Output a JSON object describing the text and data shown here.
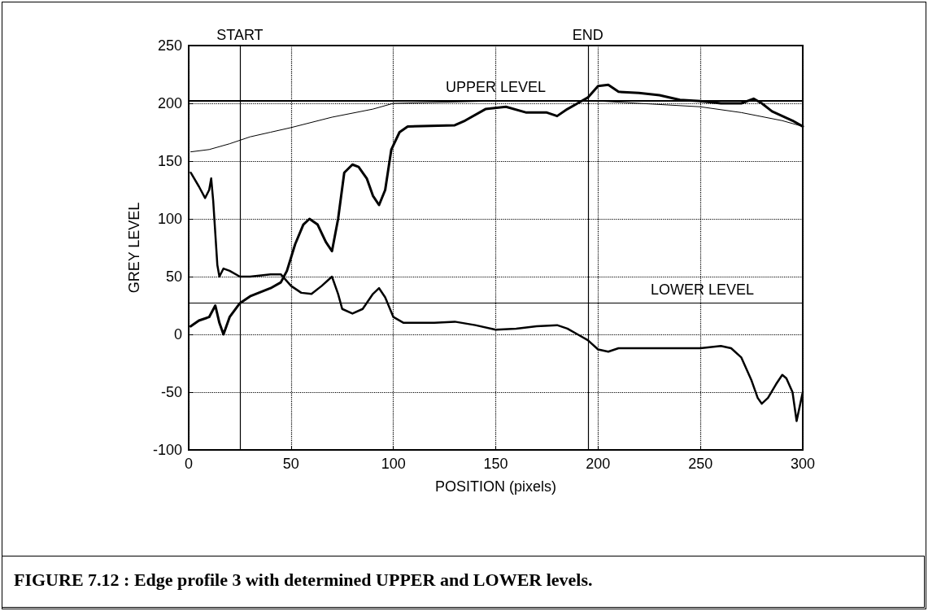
{
  "chart_data": {
    "type": "line",
    "annotations": [
      "FIGURE 7.12 : Edge profile 3 with determined UPPER and LOWER levels."
    ],
    "xlabel": "POSITION (pixels)",
    "ylabel": "GREY LEVEL",
    "xlim": [
      0,
      300
    ],
    "xticks": [
      0,
      50,
      100,
      150,
      200,
      250,
      300
    ],
    "ylim": [
      -100,
      250
    ],
    "yticks": [
      -100,
      -50,
      0,
      50,
      100,
      150,
      200,
      250
    ],
    "grid": true,
    "marker": "none",
    "ref_lines": [
      {
        "axis": "y",
        "value": 202,
        "label": "UPPER LEVEL",
        "color": "#000000"
      },
      {
        "axis": "y",
        "value": 27,
        "label": "LOWER LEVEL",
        "color": "#000000"
      },
      {
        "axis": "x",
        "value": 25,
        "label": "START",
        "color": "#000000"
      },
      {
        "axis": "x",
        "value": 195,
        "label": "END",
        "color": "#000000"
      }
    ],
    "series": [
      {
        "color": "#000000",
        "x": [
          1,
          5,
          10,
          13,
          15,
          17,
          20,
          25,
          30,
          40,
          45,
          48,
          52,
          56,
          59,
          63,
          67,
          70,
          73,
          76,
          80,
          83,
          87,
          90,
          93,
          96,
          99,
          103,
          107,
          130,
          135,
          145,
          155,
          165,
          175,
          180,
          185,
          190,
          195,
          200,
          205,
          210,
          220,
          230,
          240,
          250,
          260,
          270,
          276,
          280,
          285,
          290,
          295,
          300
        ],
        "values": [
          7,
          12,
          15,
          25,
          10,
          0,
          15,
          27,
          33,
          40,
          45,
          55,
          78,
          95,
          100,
          95,
          80,
          72,
          100,
          140,
          147,
          145,
          135,
          120,
          112,
          125,
          160,
          175,
          180,
          181,
          185,
          195,
          197,
          192,
          192,
          189,
          195,
          200,
          205,
          215,
          216,
          210,
          209,
          207,
          203,
          202,
          200,
          200,
          204,
          200,
          193,
          189,
          185,
          180
        ]
      },
      {
        "color": "#000000",
        "x": [
          1,
          10,
          20,
          30,
          40,
          50,
          70,
          90,
          100,
          150,
          200,
          250,
          270,
          290,
          300
        ],
        "values": [
          158,
          160,
          165,
          171,
          175,
          179,
          188,
          195,
          200,
          202,
          202,
          197,
          192,
          185,
          180
        ]
      },
      {
        "color": "#000000",
        "x": [
          1,
          5,
          8,
          10,
          11,
          12,
          14,
          15,
          17,
          20,
          25,
          30,
          40,
          45,
          50,
          55,
          60,
          65,
          70,
          73,
          75,
          80,
          85,
          90,
          93,
          96,
          100,
          105,
          120,
          130,
          140,
          150,
          160,
          170,
          180,
          185,
          190,
          195,
          200,
          205,
          210,
          230,
          250,
          260,
          265,
          270,
          275,
          278,
          280,
          283,
          287,
          290,
          292,
          295,
          297,
          300
        ],
        "values": [
          140,
          128,
          118,
          125,
          135,
          115,
          60,
          50,
          57,
          55,
          50,
          50,
          52,
          52,
          42,
          36,
          35,
          42,
          50,
          35,
          22,
          18,
          22,
          35,
          40,
          32,
          15,
          10,
          10,
          11,
          8,
          4,
          5,
          7,
          8,
          5,
          0,
          -5,
          -13,
          -15,
          -12,
          -12,
          -12,
          -10,
          -12,
          -20,
          -40,
          -55,
          -60,
          -55,
          -43,
          -35,
          -38,
          -50,
          -75,
          -50
        ]
      }
    ]
  }
}
